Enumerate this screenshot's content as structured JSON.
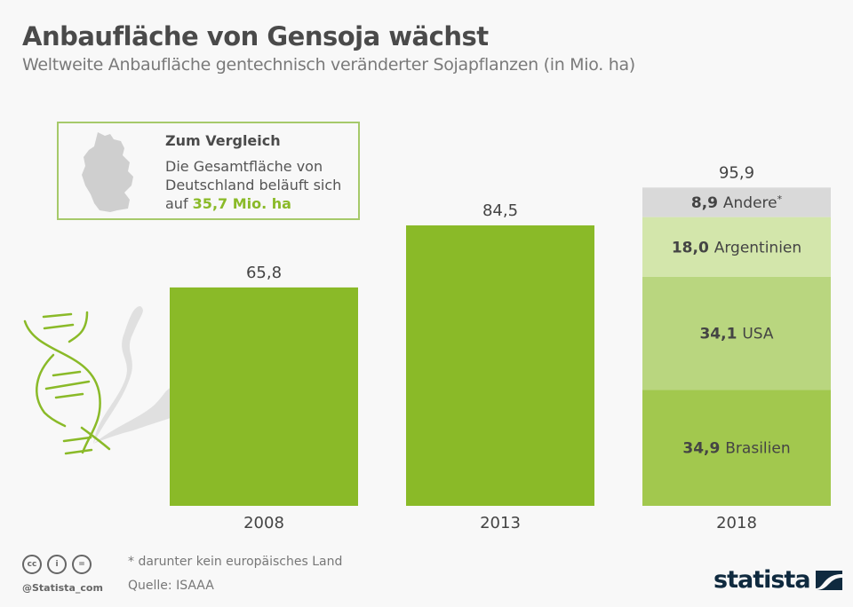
{
  "header": {
    "title": "Anbaufläche von Gensoja wächst",
    "subtitle": "Weltweite Anbaufläche gentechnisch veränderter Sojapflanzen (in Mio. ha)"
  },
  "compare_box": {
    "heading": "Zum Vergleich",
    "line1": "Die Gesamtfläche von Deutschland beläuft sich auf ",
    "highlight": "35,7 Mio. ha",
    "map_icon": "germany-map-icon"
  },
  "chart_data": {
    "type": "bar",
    "title": "Anbaufläche von Gensoja wächst",
    "subtitle": "Weltweite Anbaufläche gentechnisch veränderter Sojapflanzen (in Mio. ha)",
    "categories": [
      "2008",
      "2013",
      "2018"
    ],
    "values": [
      65.8,
      84.5,
      95.9
    ],
    "value_labels": [
      "65,8",
      "84,5",
      "95,9"
    ],
    "stacked_2018": [
      {
        "name": "Brasilien",
        "value": 34.9,
        "label": "34,9",
        "color": "#a2c84e"
      },
      {
        "name": "USA",
        "value": 34.1,
        "label": "34,1",
        "color": "#b9d67f"
      },
      {
        "name": "Argentinien",
        "value": 18.0,
        "label": "18,0",
        "color": "#d3e6ab"
      },
      {
        "name": "Andere",
        "value": 8.9,
        "label": "8,9",
        "color": "#d9d9d9",
        "suffix": "*"
      }
    ],
    "ylim": [
      0,
      100
    ],
    "xlabel": "",
    "ylabel": "Mio. ha",
    "grid": false,
    "bar_color": "#8aba28"
  },
  "footer": {
    "note": "* darunter kein europäisches Land",
    "source": "Quelle: ISAAA",
    "handle": "@Statista_com",
    "cc_icons": [
      "cc",
      "by",
      "nd"
    ],
    "logo": "statista"
  }
}
